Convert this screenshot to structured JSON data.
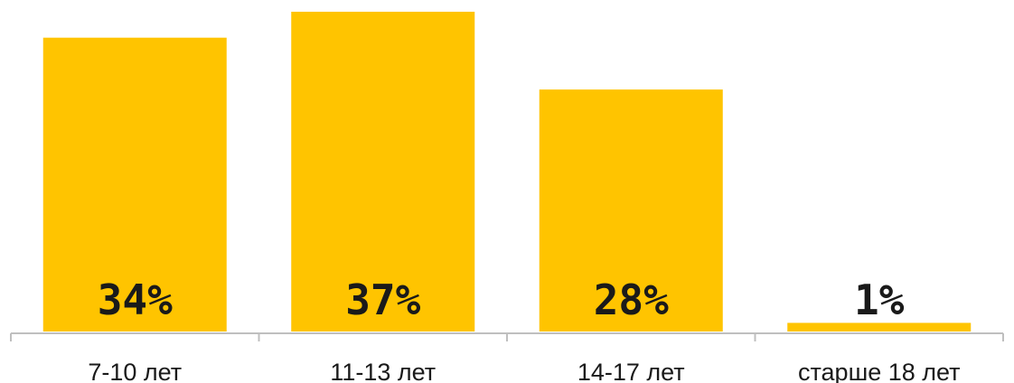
{
  "chart_data": {
    "type": "bar",
    "categories": [
      "7-10 лет",
      "11-13 лет",
      "14-17 лет",
      "старше 18 лет"
    ],
    "values": [
      34,
      37,
      28,
      1
    ],
    "value_labels": [
      "34%",
      "37%",
      "28%",
      "1%"
    ],
    "title": "",
    "xlabel": "",
    "ylabel": "",
    "ylim": [
      0,
      37
    ],
    "grid": false,
    "legend": "none",
    "bar_color": "#FFC400",
    "axis_color": "#BFBFBF",
    "text_color": "#1A1A1A"
  }
}
